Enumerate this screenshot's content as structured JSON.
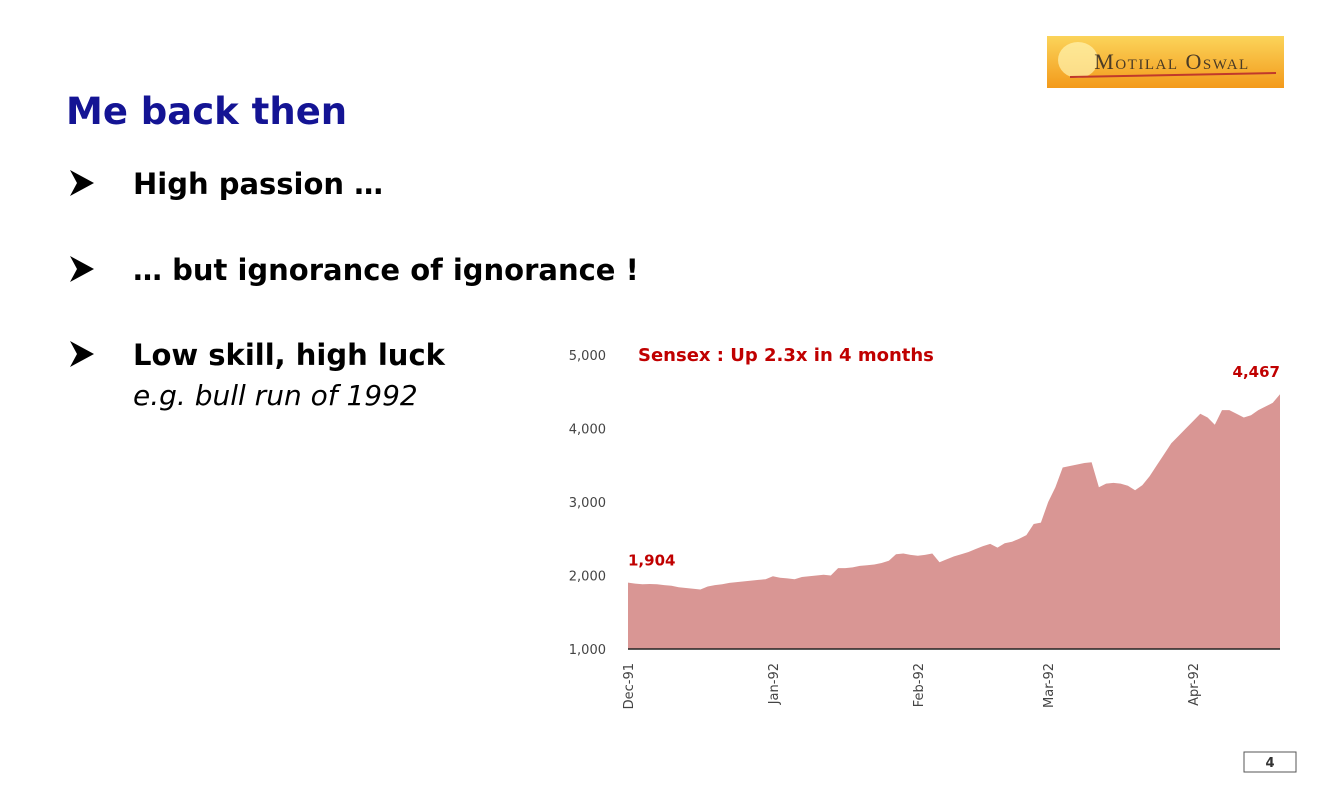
{
  "logo": "Motilal Oswal",
  "header": {
    "title": "Me back then"
  },
  "bullets": [
    {
      "text": "High passion …"
    },
    {
      "text": "… but ignorance of ignorance !"
    },
    {
      "text": "Low skill, high luck",
      "subtext": "e.g. bull run of 1992"
    }
  ],
  "page_number": "4",
  "chart_data": {
    "type": "area",
    "title": "Sensex : Up 2.3x in 4 months",
    "color": "#d99694",
    "label_color": "#c00000",
    "categories": [
      "Dec-91",
      null,
      null,
      null,
      null,
      null,
      null,
      null,
      null,
      null,
      null,
      null,
      null,
      null,
      null,
      null,
      null,
      null,
      null,
      null,
      "Jan-92",
      null,
      null,
      null,
      null,
      null,
      null,
      null,
      null,
      null,
      null,
      null,
      null,
      null,
      null,
      null,
      null,
      null,
      null,
      null,
      "Feb-92",
      null,
      null,
      null,
      null,
      null,
      null,
      null,
      null,
      null,
      null,
      null,
      null,
      null,
      null,
      null,
      null,
      null,
      "Mar-92",
      null,
      null,
      null,
      null,
      null,
      null,
      null,
      null,
      null,
      null,
      null,
      null,
      null,
      null,
      null,
      null,
      null,
      null,
      null,
      "Apr-92",
      null,
      null,
      null,
      null,
      null,
      null,
      null,
      null,
      null,
      null,
      null,
      null
    ],
    "values": [
      1904,
      1890,
      1880,
      1885,
      1880,
      1870,
      1860,
      1840,
      1830,
      1820,
      1810,
      1850,
      1870,
      1880,
      1900,
      1910,
      1920,
      1930,
      1940,
      1950,
      1990,
      1970,
      1960,
      1950,
      1980,
      1990,
      2000,
      2010,
      2000,
      2100,
      2100,
      2110,
      2130,
      2140,
      2150,
      2170,
      2200,
      2290,
      2300,
      2280,
      2270,
      2280,
      2300,
      2180,
      2220,
      2260,
      2290,
      2320,
      2360,
      2400,
      2430,
      2380,
      2440,
      2460,
      2500,
      2550,
      2700,
      2720,
      3000,
      3200,
      3470,
      3490,
      3510,
      3530,
      3540,
      3200,
      3250,
      3260,
      3250,
      3220,
      3160,
      3230,
      3350,
      3500,
      3650,
      3800,
      3900,
      4000,
      4100,
      4200,
      4150,
      4050,
      4250,
      4250,
      4200,
      4150,
      4180,
      4250,
      4300,
      4350,
      4467
    ],
    "value_labels": [
      "1,904",
      null,
      null,
      null,
      null,
      null,
      null,
      null,
      null,
      null,
      null,
      null,
      null,
      null,
      null,
      null,
      null,
      null,
      null,
      null,
      null,
      null,
      null,
      null,
      null,
      null,
      null,
      null,
      null,
      null,
      null,
      null,
      null,
      null,
      null,
      null,
      null,
      null,
      null,
      null,
      null,
      null,
      null,
      null,
      null,
      null,
      null,
      null,
      null,
      null,
      null,
      null,
      null,
      null,
      null,
      null,
      null,
      null,
      null,
      null,
      null,
      null,
      null,
      null,
      null,
      null,
      null,
      null,
      null,
      null,
      null,
      null,
      null,
      null,
      null,
      null,
      null,
      null,
      null,
      null,
      null,
      null,
      null,
      null,
      null,
      null,
      null,
      null,
      null,
      null,
      "4,467"
    ],
    "ylim": [
      1000,
      5000
    ],
    "yticks": [
      {
        "value": 1000,
        "label": "1,000"
      },
      {
        "value": 2000,
        "label": "2,000"
      },
      {
        "value": 3000,
        "label": "3,000"
      },
      {
        "value": 4000,
        "label": "4,000"
      },
      {
        "value": 5000,
        "label": "5,000"
      }
    ]
  }
}
